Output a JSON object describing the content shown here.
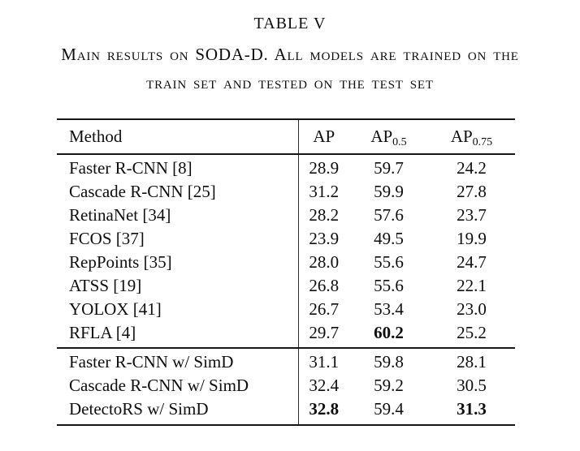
{
  "caption": {
    "label": "TABLE V",
    "lines": [
      "Main results on SODA-D. All models are trained on the",
      "train set and tested on the test set"
    ]
  },
  "table": {
    "header": {
      "method": "Method",
      "cols": [
        {
          "base": "AP",
          "sub": ""
        },
        {
          "base": "AP",
          "sub": "0.5"
        },
        {
          "base": "AP",
          "sub": "0.75"
        }
      ]
    },
    "sections": [
      {
        "rows": [
          {
            "method": "Faster R-CNN [8]",
            "values": [
              "28.9",
              "59.7",
              "24.2"
            ],
            "bold": [
              false,
              false,
              false
            ]
          },
          {
            "method": "Cascade R-CNN [25]",
            "values": [
              "31.2",
              "59.9",
              "27.8"
            ],
            "bold": [
              false,
              false,
              false
            ]
          },
          {
            "method": "RetinaNet [34]",
            "values": [
              "28.2",
              "57.6",
              "23.7"
            ],
            "bold": [
              false,
              false,
              false
            ]
          },
          {
            "method": "FCOS [37]",
            "values": [
              "23.9",
              "49.5",
              "19.9"
            ],
            "bold": [
              false,
              false,
              false
            ]
          },
          {
            "method": "RepPoints [35]",
            "values": [
              "28.0",
              "55.6",
              "24.7"
            ],
            "bold": [
              false,
              false,
              false
            ]
          },
          {
            "method": "ATSS [19]",
            "values": [
              "26.8",
              "55.6",
              "22.1"
            ],
            "bold": [
              false,
              false,
              false
            ]
          },
          {
            "method": "YOLOX [41]",
            "values": [
              "26.7",
              "53.4",
              "23.0"
            ],
            "bold": [
              false,
              false,
              false
            ]
          },
          {
            "method": "RFLA [4]",
            "values": [
              "29.7",
              "60.2",
              "25.2"
            ],
            "bold": [
              false,
              true,
              false
            ]
          }
        ]
      },
      {
        "rows": [
          {
            "method": "Faster R-CNN w/ SimD",
            "values": [
              "31.1",
              "59.8",
              "28.1"
            ],
            "bold": [
              false,
              false,
              false
            ]
          },
          {
            "method": "Cascade R-CNN w/ SimD",
            "values": [
              "32.4",
              "59.2",
              "30.5"
            ],
            "bold": [
              false,
              false,
              false
            ]
          },
          {
            "method": "DetectoRS w/ SimD",
            "values": [
              "32.8",
              "59.4",
              "31.3"
            ],
            "bold": [
              true,
              false,
              true
            ]
          }
        ]
      }
    ]
  }
}
